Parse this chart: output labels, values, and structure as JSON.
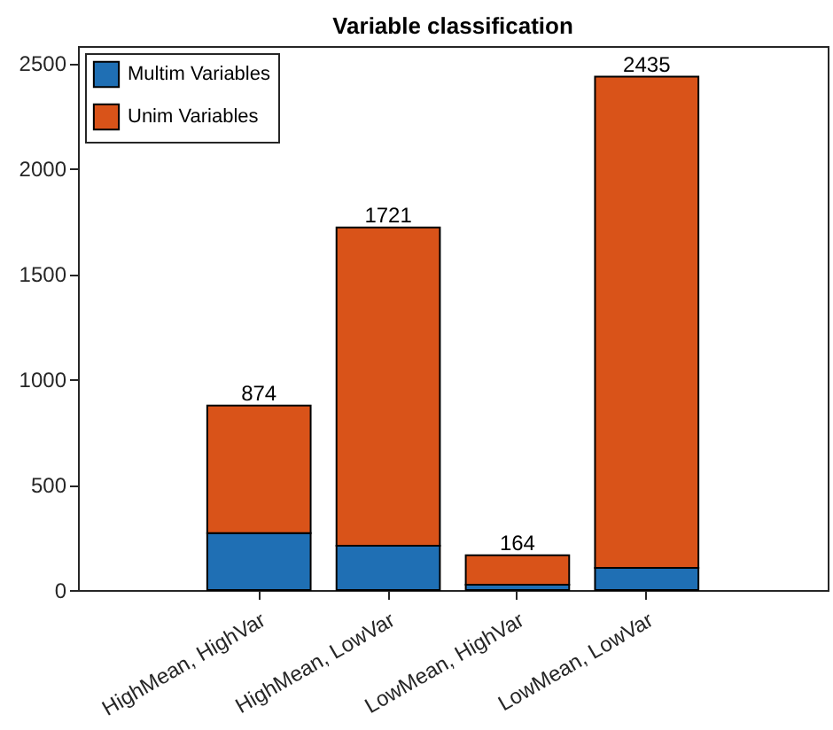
{
  "chart_data": {
    "type": "bar",
    "title": "Variable classification",
    "categories": [
      "HighMean, HighVar",
      "HighMean, LowVar",
      "LowMean, HighVar",
      "LowMean, LowVar"
    ],
    "stacked": true,
    "series": [
      {
        "name": "Multim Variables",
        "color": "#1f6fb4",
        "values": [
          270,
          210,
          25,
          105
        ]
      },
      {
        "name": "Unim Variables",
        "color": "#d95319",
        "values": [
          605,
          1510,
          140,
          2330
        ]
      }
    ],
    "totals": [
      "874",
      "1721",
      "164",
      "2435"
    ],
    "ylim": [
      0,
      2580
    ],
    "yticks": [
      0,
      500,
      1000,
      1500,
      2000,
      2500
    ],
    "grid": false,
    "legend": "top left"
  }
}
